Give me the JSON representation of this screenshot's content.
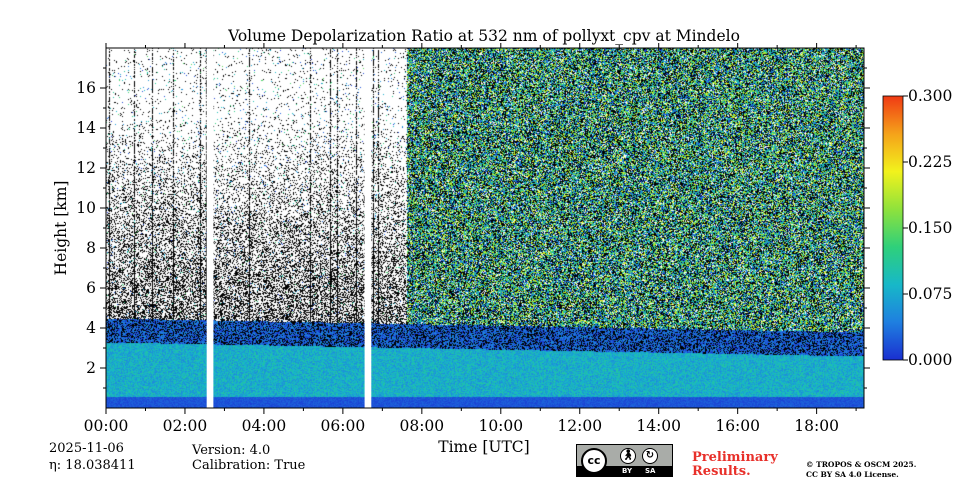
{
  "chart_data": {
    "type": "heatmap",
    "title": "Volume Depolarization Ratio at 532 nm of pollyxt_cpv at Mindelo",
    "xlabel": "Time [UTC]",
    "ylabel": "Height [km]",
    "x_range_hours": [
      0,
      19.2
    ],
    "y_range_km": [
      0,
      18
    ],
    "x_ticks": [
      {
        "value": 0,
        "label": "00:00"
      },
      {
        "value": 2,
        "label": "02:00"
      },
      {
        "value": 4,
        "label": "04:00"
      },
      {
        "value": 6,
        "label": "06:00"
      },
      {
        "value": 8,
        "label": "08:00"
      },
      {
        "value": 10,
        "label": "10:00"
      },
      {
        "value": 12,
        "label": "12:00"
      },
      {
        "value": 14,
        "label": "14:00"
      },
      {
        "value": 16,
        "label": "16:00"
      },
      {
        "value": 18,
        "label": "18:00"
      }
    ],
    "y_ticks": [
      {
        "value": 2,
        "label": "2"
      },
      {
        "value": 4,
        "label": "4"
      },
      {
        "value": 6,
        "label": "6"
      },
      {
        "value": 8,
        "label": "8"
      },
      {
        "value": 10,
        "label": "10"
      },
      {
        "value": 12,
        "label": "12"
      },
      {
        "value": 14,
        "label": "14"
      },
      {
        "value": 16,
        "label": "16"
      }
    ],
    "colorbar": {
      "range": [
        0.0,
        0.3
      ],
      "ticks": [
        {
          "value": 0.0,
          "label": "0.000"
        },
        {
          "value": 0.075,
          "label": "0.075"
        },
        {
          "value": 0.15,
          "label": "0.150"
        },
        {
          "value": 0.225,
          "label": "0.225"
        },
        {
          "value": 0.3,
          "label": "0.300"
        }
      ],
      "colormap": [
        "#1a2fd0",
        "#1f7fe0",
        "#17b8c8",
        "#2fd07a",
        "#8fe23c",
        "#f2f21c",
        "#f5a21a",
        "#f03a14"
      ]
    },
    "data_gaps_hours": [
      [
        2.55,
        2.72
      ],
      [
        6.55,
        6.72
      ]
    ],
    "layers": [
      {
        "name": "boundary layer",
        "top_km_start": 3.3,
        "top_km_end": 2.6,
        "depol_typical": 0.08
      },
      {
        "name": "clean near-surface layer",
        "top_km": 0.6,
        "depol_typical": 0.01
      }
    ]
  },
  "footer": {
    "date": "2025-11-06",
    "eta": "η: 18.038411",
    "version": "Version: 4.0",
    "calibration": "Calibration: True",
    "license_by": "BY",
    "license_sa": "SA",
    "license_cc": "cc",
    "preliminary_line1": "Preliminary",
    "preliminary_line2": "Results.",
    "copyright_line1": "© TROPOS & OSCM 2025.",
    "copyright_line2": "CC BY SA 4.0 License."
  }
}
